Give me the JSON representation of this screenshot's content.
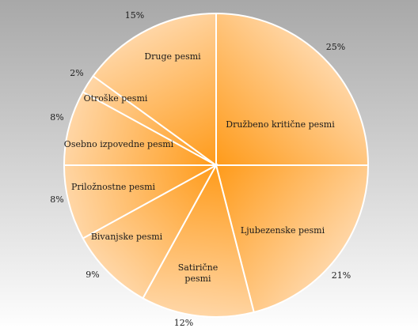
{
  "chart_data": {
    "type": "pie",
    "categories": [
      "Družbeno kritične pesmi",
      "Ljubezenske pesmi",
      "Satirične pesmi",
      "Bivanjske pesmi",
      "Priložnostne pesmi",
      "Osebno izpovedne pesmi",
      "Otroške pesmi",
      "Druge pesmi"
    ],
    "values": [
      25,
      21,
      12,
      9,
      8,
      8,
      2,
      15
    ],
    "value_labels": [
      "25%",
      "21%",
      "12%",
      "9%",
      "8%",
      "8%",
      "2%",
      "15%"
    ],
    "start_angle_deg": 90,
    "direction": "clockwise",
    "legend": "none",
    "colors": {
      "background_top": "#a8a8a8",
      "background_bottom": "#ffffff",
      "slice_light": "#ffd6a6",
      "slice_dark": "#ff9b1a",
      "slice_border": "#ffffff"
    }
  }
}
